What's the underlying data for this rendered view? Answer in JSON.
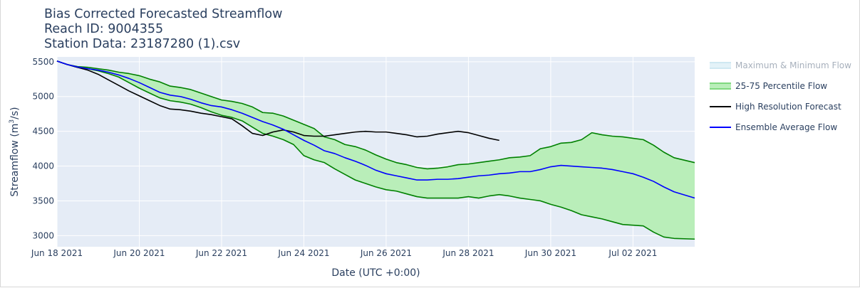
{
  "title": {
    "line1": "Bias Corrected Forecasted Streamflow",
    "line2": "Reach ID: 9004355",
    "line3": "Station Data: 23187280 (1).csv"
  },
  "legend": [
    {
      "label": "Maximum & Minimum Flow",
      "color": "#cfe8f2",
      "fill": "#e3f2f8",
      "kind": "fill",
      "dimmed": true
    },
    {
      "label": "25-75 Percentile Flow",
      "color": "#7fd87f",
      "fill": "#b9eeb9",
      "kind": "fill",
      "dimmed": false
    },
    {
      "label": "High Resolution Forecast",
      "color": "#000000",
      "kind": "line",
      "dimmed": false
    },
    {
      "label": "Ensemble Average Flow",
      "color": "#0000ff",
      "kind": "line",
      "dimmed": false
    }
  ],
  "colors": {
    "plot_bg": "#e5ecf6",
    "grid": "#ffffff",
    "percentile_line": "#008000",
    "percentile_fill": "#b9eeb9",
    "hres": "#000000",
    "ensemble": "#0000ff"
  },
  "chart_data": {
    "type": "line",
    "xlabel": "Date (UTC +0:00)",
    "ylabel": "Streamflow (m",
    "ylabel_sup": "3",
    "ylabel_tail": "/s)",
    "x_range": [
      "2021-06-18",
      "2021-07-03T12:00"
    ],
    "ylim": [
      2840,
      5570
    ],
    "y_ticks": [
      3000,
      3500,
      4000,
      4500,
      5000,
      5500
    ],
    "x_ticks": [
      {
        "date": "2021-06-18",
        "label": "Jun 18 2021"
      },
      {
        "date": "2021-06-20",
        "label": "Jun 20 2021"
      },
      {
        "date": "2021-06-22",
        "label": "Jun 22 2021"
      },
      {
        "date": "2021-06-24",
        "label": "Jun 24 2021"
      },
      {
        "date": "2021-06-26",
        "label": "Jun 26 2021"
      },
      {
        "date": "2021-06-28",
        "label": "Jun 28 2021"
      },
      {
        "date": "2021-06-30",
        "label": "Jun 30 2021"
      },
      {
        "date": "2021-07-02",
        "label": "Jul 02 2021"
      }
    ],
    "grid": true,
    "legend_position": "right",
    "series": [
      {
        "name": "25-75 Percentile Flow (upper)",
        "points": [
          [
            "2021-06-18T00:00",
            5510
          ],
          [
            "2021-06-18T06:00",
            5460
          ],
          [
            "2021-06-18T12:00",
            5430
          ],
          [
            "2021-06-18T18:00",
            5420
          ],
          [
            "2021-06-19T00:00",
            5400
          ],
          [
            "2021-06-19T06:00",
            5380
          ],
          [
            "2021-06-19T12:00",
            5350
          ],
          [
            "2021-06-19T18:00",
            5330
          ],
          [
            "2021-06-20T00:00",
            5300
          ],
          [
            "2021-06-20T06:00",
            5250
          ],
          [
            "2021-06-20T12:00",
            5210
          ],
          [
            "2021-06-20T18:00",
            5150
          ],
          [
            "2021-06-21T00:00",
            5130
          ],
          [
            "2021-06-21T06:00",
            5100
          ],
          [
            "2021-06-21T12:00",
            5050
          ],
          [
            "2021-06-21T18:00",
            5000
          ],
          [
            "2021-06-22T00:00",
            4950
          ],
          [
            "2021-06-22T06:00",
            4930
          ],
          [
            "2021-06-22T12:00",
            4900
          ],
          [
            "2021-06-22T18:00",
            4850
          ],
          [
            "2021-06-23T00:00",
            4770
          ],
          [
            "2021-06-23T06:00",
            4760
          ],
          [
            "2021-06-23T12:00",
            4720
          ],
          [
            "2021-06-23T18:00",
            4660
          ],
          [
            "2021-06-24T00:00",
            4600
          ],
          [
            "2021-06-24T06:00",
            4540
          ],
          [
            "2021-06-24T12:00",
            4420
          ],
          [
            "2021-06-24T18:00",
            4380
          ],
          [
            "2021-06-25T00:00",
            4310
          ],
          [
            "2021-06-25T06:00",
            4280
          ],
          [
            "2021-06-25T12:00",
            4230
          ],
          [
            "2021-06-25T18:00",
            4160
          ],
          [
            "2021-06-26T00:00",
            4100
          ],
          [
            "2021-06-26T06:00",
            4050
          ],
          [
            "2021-06-26T12:00",
            4020
          ],
          [
            "2021-06-26T18:00",
            3980
          ],
          [
            "2021-06-27T00:00",
            3960
          ],
          [
            "2021-06-27T06:00",
            3970
          ],
          [
            "2021-06-27T12:00",
            3990
          ],
          [
            "2021-06-27T18:00",
            4020
          ],
          [
            "2021-06-28T00:00",
            4030
          ],
          [
            "2021-06-28T06:00",
            4050
          ],
          [
            "2021-06-28T12:00",
            4070
          ],
          [
            "2021-06-28T18:00",
            4090
          ],
          [
            "2021-06-29T00:00",
            4120
          ],
          [
            "2021-06-29T06:00",
            4130
          ],
          [
            "2021-06-29T12:00",
            4150
          ],
          [
            "2021-06-29T18:00",
            4250
          ],
          [
            "2021-06-30T00:00",
            4280
          ],
          [
            "2021-06-30T06:00",
            4330
          ],
          [
            "2021-06-30T12:00",
            4340
          ],
          [
            "2021-06-30T18:00",
            4380
          ],
          [
            "2021-07-01T00:00",
            4480
          ],
          [
            "2021-07-01T06:00",
            4450
          ],
          [
            "2021-07-01T12:00",
            4430
          ],
          [
            "2021-07-01T18:00",
            4420
          ],
          [
            "2021-07-02T00:00",
            4400
          ],
          [
            "2021-07-02T06:00",
            4380
          ],
          [
            "2021-07-02T12:00",
            4300
          ],
          [
            "2021-07-02T18:00",
            4200
          ],
          [
            "2021-07-03T00:00",
            4120
          ],
          [
            "2021-07-03T12:00",
            4050
          ]
        ]
      },
      {
        "name": "25-75 Percentile Flow (lower)",
        "points": [
          [
            "2021-06-18T00:00",
            5510
          ],
          [
            "2021-06-18T06:00",
            5460
          ],
          [
            "2021-06-18T12:00",
            5420
          ],
          [
            "2021-06-18T18:00",
            5400
          ],
          [
            "2021-06-19T00:00",
            5370
          ],
          [
            "2021-06-19T06:00",
            5330
          ],
          [
            "2021-06-19T12:00",
            5280
          ],
          [
            "2021-06-19T18:00",
            5200
          ],
          [
            "2021-06-20T00:00",
            5120
          ],
          [
            "2021-06-20T06:00",
            5050
          ],
          [
            "2021-06-20T12:00",
            4980
          ],
          [
            "2021-06-20T18:00",
            4940
          ],
          [
            "2021-06-21T00:00",
            4920
          ],
          [
            "2021-06-21T06:00",
            4890
          ],
          [
            "2021-06-21T12:00",
            4840
          ],
          [
            "2021-06-21T18:00",
            4780
          ],
          [
            "2021-06-22T00:00",
            4730
          ],
          [
            "2021-06-22T06:00",
            4700
          ],
          [
            "2021-06-22T12:00",
            4650
          ],
          [
            "2021-06-22T18:00",
            4560
          ],
          [
            "2021-06-23T00:00",
            4470
          ],
          [
            "2021-06-23T06:00",
            4430
          ],
          [
            "2021-06-23T12:00",
            4380
          ],
          [
            "2021-06-23T18:00",
            4310
          ],
          [
            "2021-06-24T00:00",
            4150
          ],
          [
            "2021-06-24T06:00",
            4090
          ],
          [
            "2021-06-24T12:00",
            4050
          ],
          [
            "2021-06-24T18:00",
            3960
          ],
          [
            "2021-06-25T00:00",
            3880
          ],
          [
            "2021-06-25T06:00",
            3800
          ],
          [
            "2021-06-25T12:00",
            3750
          ],
          [
            "2021-06-25T18:00",
            3700
          ],
          [
            "2021-06-26T00:00",
            3660
          ],
          [
            "2021-06-26T06:00",
            3640
          ],
          [
            "2021-06-26T12:00",
            3600
          ],
          [
            "2021-06-26T18:00",
            3560
          ],
          [
            "2021-06-27T00:00",
            3540
          ],
          [
            "2021-06-27T06:00",
            3540
          ],
          [
            "2021-06-27T12:00",
            3540
          ],
          [
            "2021-06-27T18:00",
            3540
          ],
          [
            "2021-06-28T00:00",
            3560
          ],
          [
            "2021-06-28T06:00",
            3540
          ],
          [
            "2021-06-28T12:00",
            3570
          ],
          [
            "2021-06-28T18:00",
            3590
          ],
          [
            "2021-06-29T00:00",
            3570
          ],
          [
            "2021-06-29T06:00",
            3540
          ],
          [
            "2021-06-29T12:00",
            3520
          ],
          [
            "2021-06-29T18:00",
            3500
          ],
          [
            "2021-06-30T00:00",
            3450
          ],
          [
            "2021-06-30T06:00",
            3410
          ],
          [
            "2021-06-30T12:00",
            3360
          ],
          [
            "2021-06-30T18:00",
            3300
          ],
          [
            "2021-07-01T00:00",
            3270
          ],
          [
            "2021-07-01T06:00",
            3240
          ],
          [
            "2021-07-01T12:00",
            3200
          ],
          [
            "2021-07-01T18:00",
            3160
          ],
          [
            "2021-07-02T00:00",
            3150
          ],
          [
            "2021-07-02T06:00",
            3140
          ],
          [
            "2021-07-02T12:00",
            3050
          ],
          [
            "2021-07-02T18:00",
            2980
          ],
          [
            "2021-07-03T00:00",
            2960
          ],
          [
            "2021-07-03T12:00",
            2950
          ]
        ]
      },
      {
        "name": "Ensemble Average Flow",
        "points": [
          [
            "2021-06-18T00:00",
            5510
          ],
          [
            "2021-06-18T06:00",
            5460
          ],
          [
            "2021-06-18T12:00",
            5425
          ],
          [
            "2021-06-18T18:00",
            5400
          ],
          [
            "2021-06-19T00:00",
            5380
          ],
          [
            "2021-06-19T06:00",
            5350
          ],
          [
            "2021-06-19T12:00",
            5310
          ],
          [
            "2021-06-19T18:00",
            5260
          ],
          [
            "2021-06-20T00:00",
            5200
          ],
          [
            "2021-06-20T06:00",
            5130
          ],
          [
            "2021-06-20T12:00",
            5060
          ],
          [
            "2021-06-20T18:00",
            5020
          ],
          [
            "2021-06-21T00:00",
            5000
          ],
          [
            "2021-06-21T06:00",
            4960
          ],
          [
            "2021-06-21T12:00",
            4910
          ],
          [
            "2021-06-21T18:00",
            4870
          ],
          [
            "2021-06-22T00:00",
            4850
          ],
          [
            "2021-06-22T06:00",
            4810
          ],
          [
            "2021-06-22T12:00",
            4760
          ],
          [
            "2021-06-22T18:00",
            4700
          ],
          [
            "2021-06-23T00:00",
            4640
          ],
          [
            "2021-06-23T06:00",
            4590
          ],
          [
            "2021-06-23T12:00",
            4530
          ],
          [
            "2021-06-23T18:00",
            4450
          ],
          [
            "2021-06-24T00:00",
            4370
          ],
          [
            "2021-06-24T06:00",
            4300
          ],
          [
            "2021-06-24T12:00",
            4220
          ],
          [
            "2021-06-24T18:00",
            4180
          ],
          [
            "2021-06-25T00:00",
            4120
          ],
          [
            "2021-06-25T06:00",
            4070
          ],
          [
            "2021-06-25T12:00",
            4010
          ],
          [
            "2021-06-25T18:00",
            3940
          ],
          [
            "2021-06-26T00:00",
            3890
          ],
          [
            "2021-06-26T06:00",
            3860
          ],
          [
            "2021-06-26T12:00",
            3830
          ],
          [
            "2021-06-26T18:00",
            3800
          ],
          [
            "2021-06-27T00:00",
            3800
          ],
          [
            "2021-06-27T06:00",
            3810
          ],
          [
            "2021-06-27T12:00",
            3810
          ],
          [
            "2021-06-27T18:00",
            3820
          ],
          [
            "2021-06-28T00:00",
            3840
          ],
          [
            "2021-06-28T06:00",
            3860
          ],
          [
            "2021-06-28T12:00",
            3870
          ],
          [
            "2021-06-28T18:00",
            3890
          ],
          [
            "2021-06-29T00:00",
            3900
          ],
          [
            "2021-06-29T06:00",
            3920
          ],
          [
            "2021-06-29T12:00",
            3920
          ],
          [
            "2021-06-29T18:00",
            3950
          ],
          [
            "2021-06-30T00:00",
            3990
          ],
          [
            "2021-06-30T06:00",
            4010
          ],
          [
            "2021-06-30T12:00",
            4000
          ],
          [
            "2021-06-30T18:00",
            3990
          ],
          [
            "2021-07-01T00:00",
            3980
          ],
          [
            "2021-07-01T06:00",
            3970
          ],
          [
            "2021-07-01T12:00",
            3950
          ],
          [
            "2021-07-01T18:00",
            3920
          ],
          [
            "2021-07-02T00:00",
            3890
          ],
          [
            "2021-07-02T06:00",
            3840
          ],
          [
            "2021-07-02T12:00",
            3780
          ],
          [
            "2021-07-02T18:00",
            3700
          ],
          [
            "2021-07-03T00:00",
            3630
          ],
          [
            "2021-07-03T12:00",
            3540
          ]
        ]
      },
      {
        "name": "High Resolution Forecast",
        "points": [
          [
            "2021-06-18T00:00",
            5510
          ],
          [
            "2021-06-18T06:00",
            5460
          ],
          [
            "2021-06-18T12:00",
            5420
          ],
          [
            "2021-06-18T18:00",
            5380
          ],
          [
            "2021-06-19T00:00",
            5320
          ],
          [
            "2021-06-19T06:00",
            5240
          ],
          [
            "2021-06-19T12:00",
            5160
          ],
          [
            "2021-06-19T18:00",
            5080
          ],
          [
            "2021-06-20T00:00",
            5010
          ],
          [
            "2021-06-20T06:00",
            4940
          ],
          [
            "2021-06-20T12:00",
            4870
          ],
          [
            "2021-06-20T18:00",
            4820
          ],
          [
            "2021-06-21T00:00",
            4810
          ],
          [
            "2021-06-21T06:00",
            4790
          ],
          [
            "2021-06-21T12:00",
            4760
          ],
          [
            "2021-06-21T18:00",
            4740
          ],
          [
            "2021-06-22T00:00",
            4710
          ],
          [
            "2021-06-22T06:00",
            4680
          ],
          [
            "2021-06-22T12:00",
            4580
          ],
          [
            "2021-06-22T18:00",
            4470
          ],
          [
            "2021-06-23T00:00",
            4440
          ],
          [
            "2021-06-23T06:00",
            4490
          ],
          [
            "2021-06-23T12:00",
            4520
          ],
          [
            "2021-06-23T18:00",
            4490
          ],
          [
            "2021-06-24T00:00",
            4440
          ],
          [
            "2021-06-24T06:00",
            4430
          ],
          [
            "2021-06-24T12:00",
            4430
          ],
          [
            "2021-06-24T18:00",
            4450
          ],
          [
            "2021-06-25T00:00",
            4470
          ],
          [
            "2021-06-25T06:00",
            4490
          ],
          [
            "2021-06-25T12:00",
            4500
          ],
          [
            "2021-06-25T18:00",
            4490
          ],
          [
            "2021-06-26T00:00",
            4490
          ],
          [
            "2021-06-26T06:00",
            4470
          ],
          [
            "2021-06-26T12:00",
            4450
          ],
          [
            "2021-06-26T18:00",
            4420
          ],
          [
            "2021-06-27T00:00",
            4430
          ],
          [
            "2021-06-27T06:00",
            4460
          ],
          [
            "2021-06-27T12:00",
            4480
          ],
          [
            "2021-06-27T18:00",
            4500
          ],
          [
            "2021-06-28T00:00",
            4480
          ],
          [
            "2021-06-28T06:00",
            4440
          ],
          [
            "2021-06-28T12:00",
            4400
          ],
          [
            "2021-06-28T18:00",
            4370
          ]
        ]
      }
    ]
  }
}
